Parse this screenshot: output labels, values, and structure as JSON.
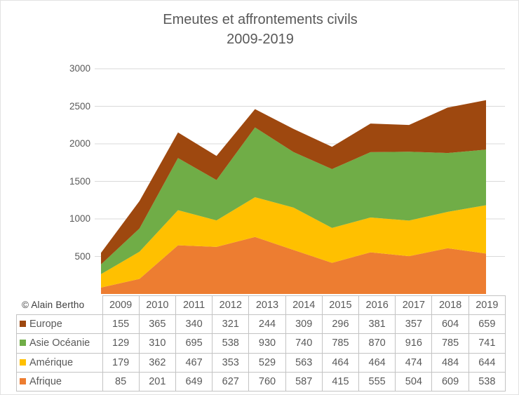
{
  "title": {
    "line1": "Emeutes et affrontements civils",
    "line2": "2009-2019"
  },
  "copyright": "© Alain Bertho",
  "chart_data": {
    "type": "area",
    "stacked": true,
    "title": "Emeutes et affrontements civils 2009-2019",
    "x": [
      "2009",
      "2010",
      "2011",
      "2012",
      "2013",
      "2014",
      "2015",
      "2016",
      "2017",
      "2018",
      "2019"
    ],
    "series_order": "bottom-to-top",
    "series": [
      {
        "name": "Afrique",
        "color": "#ED7D31",
        "values": [
          85,
          201,
          649,
          627,
          760,
          587,
          415,
          555,
          504,
          609,
          538
        ]
      },
      {
        "name": "Amérique",
        "color": "#FFC000",
        "values": [
          179,
          362,
          467,
          353,
          529,
          563,
          464,
          464,
          474,
          484,
          644
        ]
      },
      {
        "name": "Asie Océanie",
        "color": "#70AD47",
        "values": [
          129,
          310,
          695,
          538,
          930,
          740,
          785,
          870,
          916,
          785,
          741
        ]
      },
      {
        "name": "Europe",
        "color": "#9E480F",
        "values": [
          155,
          365,
          340,
          321,
          244,
          309,
          296,
          381,
          357,
          604,
          659
        ]
      }
    ],
    "table_row_order": [
      "Europe",
      "Asie Océanie",
      "Amérique",
      "Afrique"
    ],
    "xlabel": "",
    "ylabel": "",
    "ylim": [
      0,
      3000
    ],
    "yticks": [
      500,
      1000,
      1500,
      2000,
      2500,
      3000
    ],
    "grid": true,
    "gridline_color": "#D9D9D9",
    "text_color": "#595959",
    "legend_position": "data-table-left-column"
  }
}
